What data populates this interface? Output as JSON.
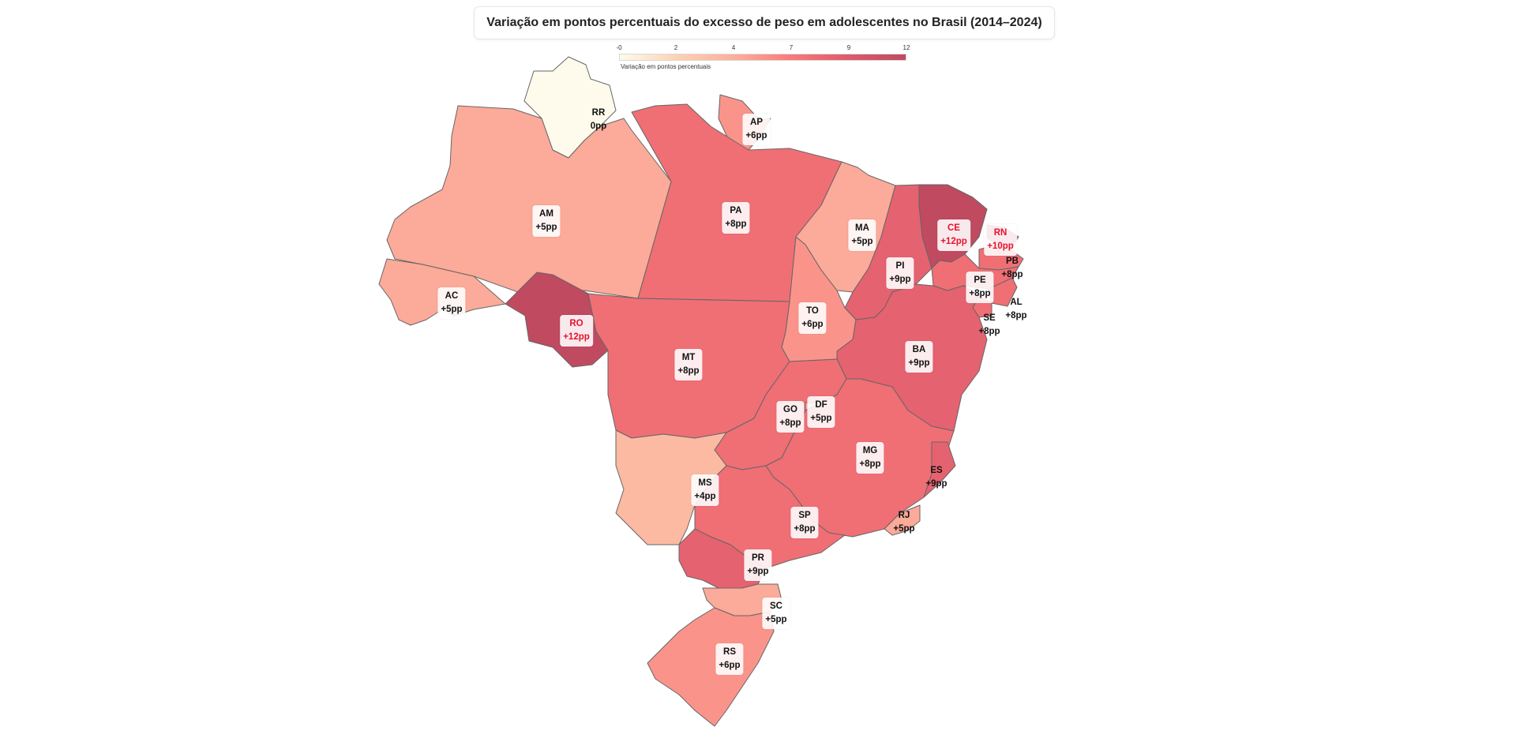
{
  "title": "Variação em pontos percentuais do excesso de peso em adolescentes no Brasil (2014–2024)",
  "legend": {
    "label": "Variação em pontos percentuais",
    "ticks": [
      "-0",
      "2",
      "4",
      "7",
      "9",
      "12"
    ],
    "min": 0,
    "max": 12,
    "colors": [
      "#fffbec",
      "#fdd2b0",
      "#fcae9c",
      "#f87a7a",
      "#de5a6c",
      "#c04a60"
    ]
  },
  "chart_data": {
    "type": "choropleth",
    "region": "Brasil",
    "period": "2014–2024",
    "states": [
      {
        "code": "RR",
        "value_label": "0pp",
        "value": 0
      },
      {
        "code": "AP",
        "value_label": "+6pp",
        "value": 6
      },
      {
        "code": "AM",
        "value_label": "+5pp",
        "value": 5
      },
      {
        "code": "PA",
        "value_label": "+8pp",
        "value": 8
      },
      {
        "code": "MA",
        "value_label": "+5pp",
        "value": 5
      },
      {
        "code": "CE",
        "value_label": "+12pp",
        "value": 12
      },
      {
        "code": "RN",
        "value_label": "+10pp",
        "value": 10
      },
      {
        "code": "PB",
        "value_label": "+8pp",
        "value": 8
      },
      {
        "code": "PI",
        "value_label": "+9pp",
        "value": 9
      },
      {
        "code": "PE",
        "value_label": "+8pp",
        "value": 8
      },
      {
        "code": "AL",
        "value_label": "+8pp",
        "value": 8
      },
      {
        "code": "SE",
        "value_label": "+8pp",
        "value": 8
      },
      {
        "code": "AC",
        "value_label": "+5pp",
        "value": 5
      },
      {
        "code": "RO",
        "value_label": "+12pp",
        "value": 12
      },
      {
        "code": "TO",
        "value_label": "+6pp",
        "value": 6
      },
      {
        "code": "BA",
        "value_label": "+9pp",
        "value": 9
      },
      {
        "code": "MT",
        "value_label": "+8pp",
        "value": 8
      },
      {
        "code": "GO",
        "value_label": "+8pp",
        "value": 8
      },
      {
        "code": "DF",
        "value_label": "+5pp",
        "value": 5
      },
      {
        "code": "MG",
        "value_label": "+8pp",
        "value": 8
      },
      {
        "code": "ES",
        "value_label": "+9pp",
        "value": 9
      },
      {
        "code": "MS",
        "value_label": "+4pp",
        "value": 4
      },
      {
        "code": "SP",
        "value_label": "+8pp",
        "value": 8
      },
      {
        "code": "RJ",
        "value_label": "+5pp",
        "value": 5
      },
      {
        "code": "PR",
        "value_label": "+9pp",
        "value": 9
      },
      {
        "code": "SC",
        "value_label": "+5pp",
        "value": 5
      },
      {
        "code": "RS",
        "value_label": "+6pp",
        "value": 6
      }
    ],
    "highlighted": [
      "RO",
      "CE",
      "RN"
    ]
  }
}
